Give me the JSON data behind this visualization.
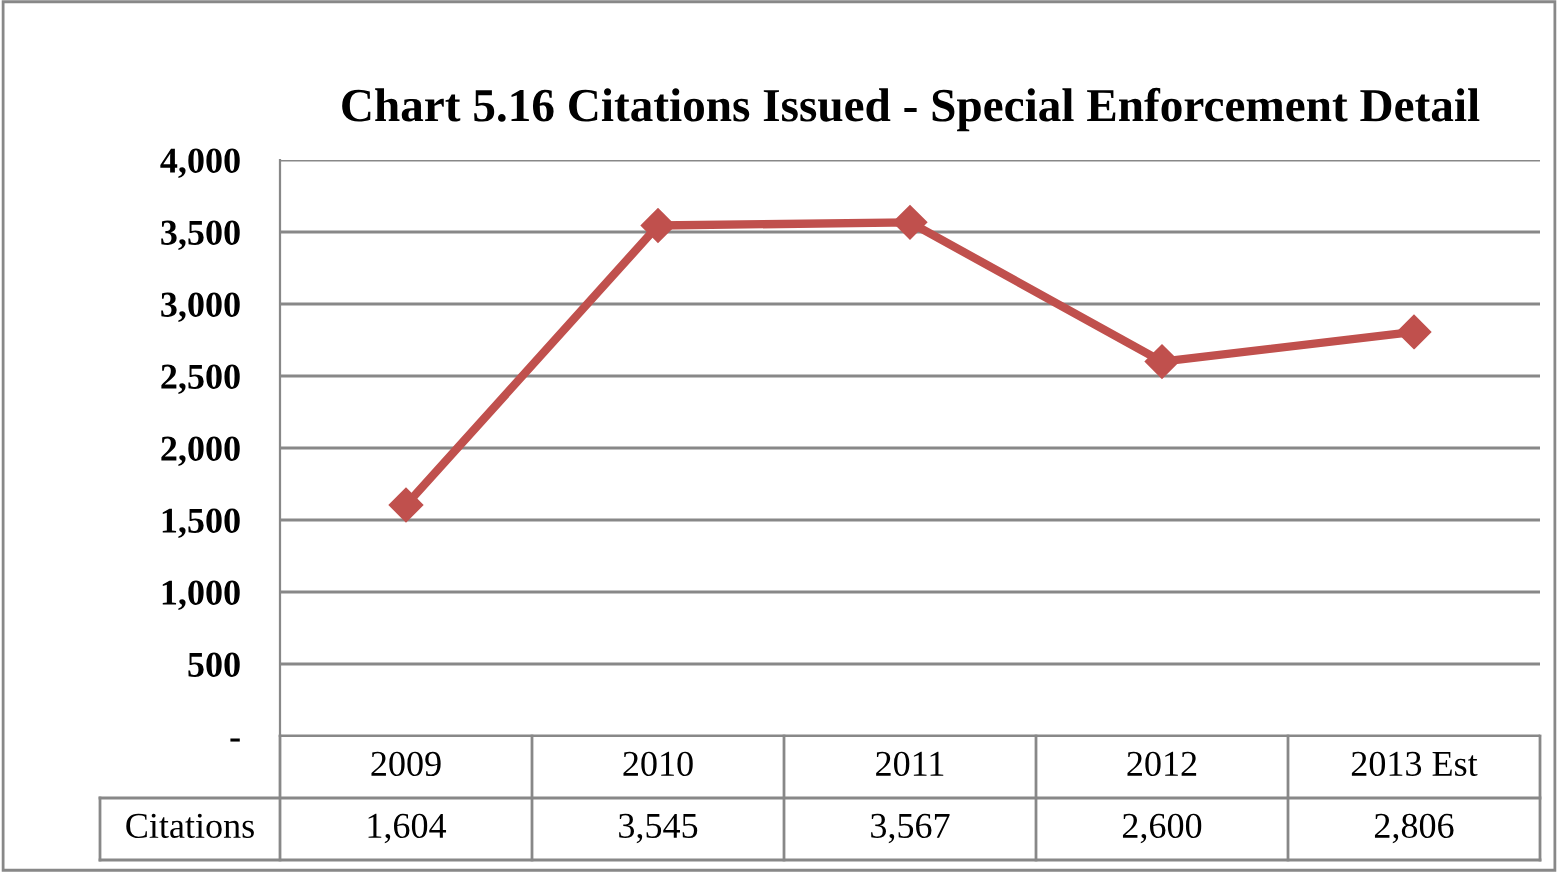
{
  "chart_data": {
    "type": "line",
    "title": "Chart 5.16 Citations Issued - Special Enforcement Detail",
    "categories": [
      "2009",
      "2010",
      "2011",
      "2012",
      "2013 Est"
    ],
    "series": [
      {
        "name": "Citations",
        "color": "#c0504d",
        "values": [
          1604,
          3545,
          3567,
          2600,
          2806
        ],
        "value_labels": [
          "1,604",
          "3,545",
          "3,567",
          "2,600",
          "2,806"
        ]
      }
    ],
    "ylim": [
      0,
      4000
    ],
    "yticks": [
      {
        "value": 0,
        "label": "-"
      },
      {
        "value": 500,
        "label": "500"
      },
      {
        "value": 1000,
        "label": "1,000"
      },
      {
        "value": 1500,
        "label": "1,500"
      },
      {
        "value": 2000,
        "label": "2,000"
      },
      {
        "value": 2500,
        "label": "2,500"
      },
      {
        "value": 3000,
        "label": "3,000"
      },
      {
        "value": 3500,
        "label": "3,500"
      },
      {
        "value": 4000,
        "label": "4,000"
      }
    ],
    "grid": "y",
    "marker": "diamond",
    "line_style": "solid",
    "legend": false
  }
}
